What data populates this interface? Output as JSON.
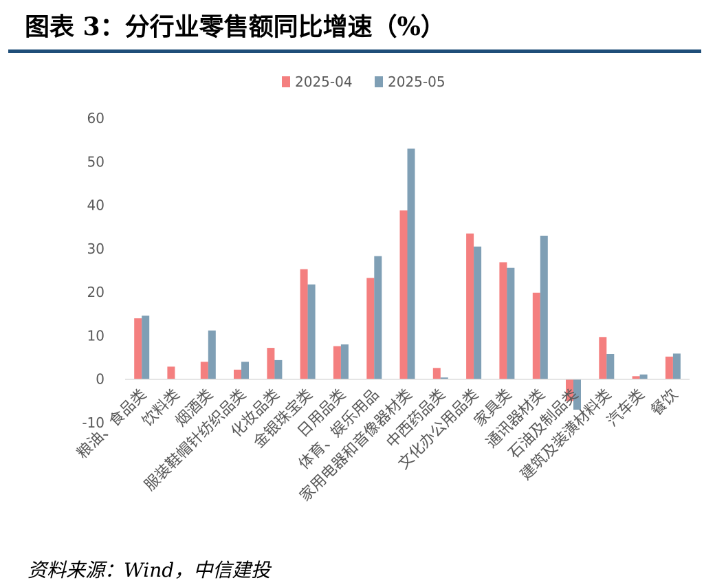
{
  "header": {
    "title": "图表 3：分行业零售额同比增速（%）"
  },
  "footer": {
    "source": "资料来源：Wind，中信建投"
  },
  "colors": {
    "series_a": "#f47f7f",
    "series_b": "#7f9fb5",
    "rule": "#1f4e79",
    "axis": "#d9d9d9"
  },
  "chart_data": {
    "type": "bar",
    "title": "图表 3：分行业零售额同比增速（%）",
    "xlabel": "",
    "ylabel": "",
    "ylim": [
      -10,
      60
    ],
    "yticks": [
      -10,
      0,
      10,
      20,
      30,
      40,
      50,
      60
    ],
    "legend_position": "top-center",
    "grid": false,
    "categories": [
      "粮油、食品类",
      "饮料类",
      "烟酒类",
      "服装鞋帽针纺织品类",
      "化妆品类",
      "金银珠宝类",
      "日用品类",
      "体育、娱乐用品",
      "家用电器和音像器材类",
      "中西药品类",
      "文化办公用品类",
      "家具类",
      "通讯器材类",
      "石油及制品类",
      "建筑及装潢材料类",
      "汽车类",
      "餐饮"
    ],
    "series": [
      {
        "name": "2025-04",
        "values": [
          14.0,
          2.9,
          4.0,
          2.2,
          7.2,
          25.3,
          7.6,
          23.3,
          38.8,
          2.6,
          33.5,
          26.9,
          19.9,
          -5.0,
          9.7,
          0.7,
          5.2
        ]
      },
      {
        "name": "2025-05",
        "values": [
          14.6,
          0.1,
          11.2,
          4.0,
          4.4,
          21.8,
          8.0,
          28.3,
          53.0,
          0.4,
          30.5,
          25.6,
          33.0,
          -7.0,
          5.8,
          1.1,
          5.9
        ]
      }
    ]
  }
}
